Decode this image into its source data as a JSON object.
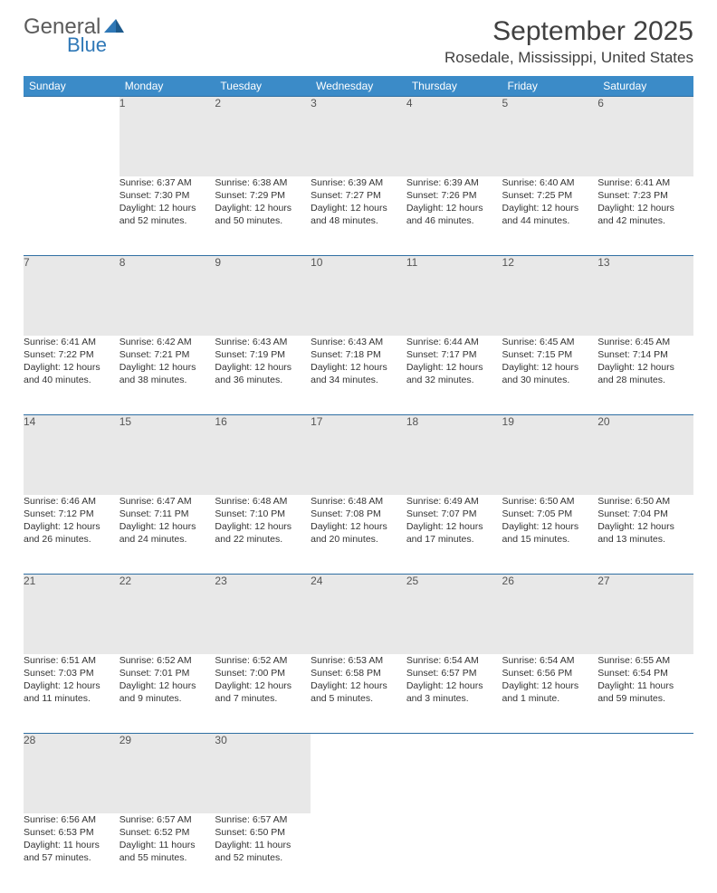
{
  "logo": {
    "text1": "General",
    "text2": "Blue"
  },
  "title": "September 2025",
  "location": "Rosedale, Mississippi, United States",
  "colors": {
    "header_bg": "#3b8bc8",
    "header_text": "#ffffff",
    "daynum_bg": "#e8e8e8",
    "row_border": "#2f6fa3",
    "text": "#333333",
    "logo_gray": "#5b5b5b",
    "logo_blue": "#2f78b7",
    "page_bg": "#ffffff"
  },
  "weekdays": [
    "Sunday",
    "Monday",
    "Tuesday",
    "Wednesday",
    "Thursday",
    "Friday",
    "Saturday"
  ],
  "weeks": [
    {
      "days": [
        {
          "num": "",
          "empty": true
        },
        {
          "num": "1",
          "sunrise": "Sunrise: 6:37 AM",
          "sunset": "Sunset: 7:30 PM",
          "daylight1": "Daylight: 12 hours",
          "daylight2": "and 52 minutes."
        },
        {
          "num": "2",
          "sunrise": "Sunrise: 6:38 AM",
          "sunset": "Sunset: 7:29 PM",
          "daylight1": "Daylight: 12 hours",
          "daylight2": "and 50 minutes."
        },
        {
          "num": "3",
          "sunrise": "Sunrise: 6:39 AM",
          "sunset": "Sunset: 7:27 PM",
          "daylight1": "Daylight: 12 hours",
          "daylight2": "and 48 minutes."
        },
        {
          "num": "4",
          "sunrise": "Sunrise: 6:39 AM",
          "sunset": "Sunset: 7:26 PM",
          "daylight1": "Daylight: 12 hours",
          "daylight2": "and 46 minutes."
        },
        {
          "num": "5",
          "sunrise": "Sunrise: 6:40 AM",
          "sunset": "Sunset: 7:25 PM",
          "daylight1": "Daylight: 12 hours",
          "daylight2": "and 44 minutes."
        },
        {
          "num": "6",
          "sunrise": "Sunrise: 6:41 AM",
          "sunset": "Sunset: 7:23 PM",
          "daylight1": "Daylight: 12 hours",
          "daylight2": "and 42 minutes."
        }
      ]
    },
    {
      "days": [
        {
          "num": "7",
          "sunrise": "Sunrise: 6:41 AM",
          "sunset": "Sunset: 7:22 PM",
          "daylight1": "Daylight: 12 hours",
          "daylight2": "and 40 minutes."
        },
        {
          "num": "8",
          "sunrise": "Sunrise: 6:42 AM",
          "sunset": "Sunset: 7:21 PM",
          "daylight1": "Daylight: 12 hours",
          "daylight2": "and 38 minutes."
        },
        {
          "num": "9",
          "sunrise": "Sunrise: 6:43 AM",
          "sunset": "Sunset: 7:19 PM",
          "daylight1": "Daylight: 12 hours",
          "daylight2": "and 36 minutes."
        },
        {
          "num": "10",
          "sunrise": "Sunrise: 6:43 AM",
          "sunset": "Sunset: 7:18 PM",
          "daylight1": "Daylight: 12 hours",
          "daylight2": "and 34 minutes."
        },
        {
          "num": "11",
          "sunrise": "Sunrise: 6:44 AM",
          "sunset": "Sunset: 7:17 PM",
          "daylight1": "Daylight: 12 hours",
          "daylight2": "and 32 minutes."
        },
        {
          "num": "12",
          "sunrise": "Sunrise: 6:45 AM",
          "sunset": "Sunset: 7:15 PM",
          "daylight1": "Daylight: 12 hours",
          "daylight2": "and 30 minutes."
        },
        {
          "num": "13",
          "sunrise": "Sunrise: 6:45 AM",
          "sunset": "Sunset: 7:14 PM",
          "daylight1": "Daylight: 12 hours",
          "daylight2": "and 28 minutes."
        }
      ]
    },
    {
      "days": [
        {
          "num": "14",
          "sunrise": "Sunrise: 6:46 AM",
          "sunset": "Sunset: 7:12 PM",
          "daylight1": "Daylight: 12 hours",
          "daylight2": "and 26 minutes."
        },
        {
          "num": "15",
          "sunrise": "Sunrise: 6:47 AM",
          "sunset": "Sunset: 7:11 PM",
          "daylight1": "Daylight: 12 hours",
          "daylight2": "and 24 minutes."
        },
        {
          "num": "16",
          "sunrise": "Sunrise: 6:48 AM",
          "sunset": "Sunset: 7:10 PM",
          "daylight1": "Daylight: 12 hours",
          "daylight2": "and 22 minutes."
        },
        {
          "num": "17",
          "sunrise": "Sunrise: 6:48 AM",
          "sunset": "Sunset: 7:08 PM",
          "daylight1": "Daylight: 12 hours",
          "daylight2": "and 20 minutes."
        },
        {
          "num": "18",
          "sunrise": "Sunrise: 6:49 AM",
          "sunset": "Sunset: 7:07 PM",
          "daylight1": "Daylight: 12 hours",
          "daylight2": "and 17 minutes."
        },
        {
          "num": "19",
          "sunrise": "Sunrise: 6:50 AM",
          "sunset": "Sunset: 7:05 PM",
          "daylight1": "Daylight: 12 hours",
          "daylight2": "and 15 minutes."
        },
        {
          "num": "20",
          "sunrise": "Sunrise: 6:50 AM",
          "sunset": "Sunset: 7:04 PM",
          "daylight1": "Daylight: 12 hours",
          "daylight2": "and 13 minutes."
        }
      ]
    },
    {
      "days": [
        {
          "num": "21",
          "sunrise": "Sunrise: 6:51 AM",
          "sunset": "Sunset: 7:03 PM",
          "daylight1": "Daylight: 12 hours",
          "daylight2": "and 11 minutes."
        },
        {
          "num": "22",
          "sunrise": "Sunrise: 6:52 AM",
          "sunset": "Sunset: 7:01 PM",
          "daylight1": "Daylight: 12 hours",
          "daylight2": "and 9 minutes."
        },
        {
          "num": "23",
          "sunrise": "Sunrise: 6:52 AM",
          "sunset": "Sunset: 7:00 PM",
          "daylight1": "Daylight: 12 hours",
          "daylight2": "and 7 minutes."
        },
        {
          "num": "24",
          "sunrise": "Sunrise: 6:53 AM",
          "sunset": "Sunset: 6:58 PM",
          "daylight1": "Daylight: 12 hours",
          "daylight2": "and 5 minutes."
        },
        {
          "num": "25",
          "sunrise": "Sunrise: 6:54 AM",
          "sunset": "Sunset: 6:57 PM",
          "daylight1": "Daylight: 12 hours",
          "daylight2": "and 3 minutes."
        },
        {
          "num": "26",
          "sunrise": "Sunrise: 6:54 AM",
          "sunset": "Sunset: 6:56 PM",
          "daylight1": "Daylight: 12 hours",
          "daylight2": "and 1 minute."
        },
        {
          "num": "27",
          "sunrise": "Sunrise: 6:55 AM",
          "sunset": "Sunset: 6:54 PM",
          "daylight1": "Daylight: 11 hours",
          "daylight2": "and 59 minutes."
        }
      ]
    },
    {
      "days": [
        {
          "num": "28",
          "sunrise": "Sunrise: 6:56 AM",
          "sunset": "Sunset: 6:53 PM",
          "daylight1": "Daylight: 11 hours",
          "daylight2": "and 57 minutes."
        },
        {
          "num": "29",
          "sunrise": "Sunrise: 6:57 AM",
          "sunset": "Sunset: 6:52 PM",
          "daylight1": "Daylight: 11 hours",
          "daylight2": "and 55 minutes."
        },
        {
          "num": "30",
          "sunrise": "Sunrise: 6:57 AM",
          "sunset": "Sunset: 6:50 PM",
          "daylight1": "Daylight: 11 hours",
          "daylight2": "and 52 minutes."
        },
        {
          "num": "",
          "empty": true
        },
        {
          "num": "",
          "empty": true
        },
        {
          "num": "",
          "empty": true
        },
        {
          "num": "",
          "empty": true
        }
      ]
    }
  ]
}
